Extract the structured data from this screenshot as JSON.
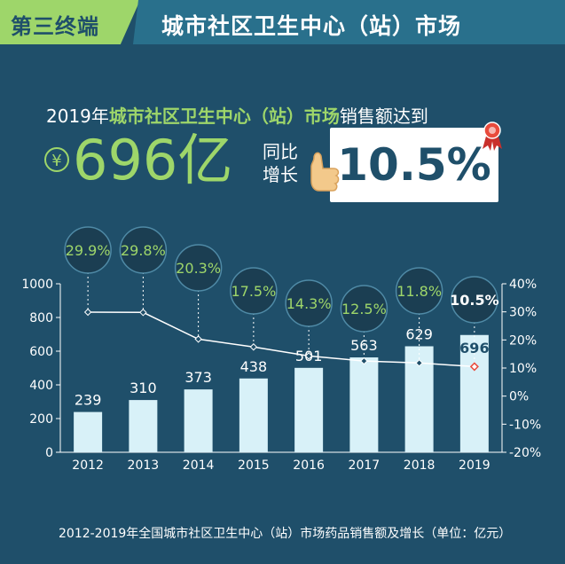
{
  "banner": {
    "tag": "第三终端",
    "title": "城市社区卫生中心（站）市场"
  },
  "headline": {
    "year": "2019年",
    "market": "城市社区卫生中心（站）市场",
    "suffix": "销售额达到"
  },
  "amount": {
    "currency": "¥",
    "value": "696亿"
  },
  "yoy": {
    "line1": "同比",
    "line2": "增长",
    "value": "10.5%"
  },
  "caption": "2012-2019年全国城市社区卫生中心（站）市场药品销售额及增长（单位：亿元）",
  "colors": {
    "background": "#1f4f6a",
    "accent": "#9ed66a",
    "banner_title": "#29708c",
    "bar": "#d8f1f8",
    "growth_line": "#ffffff",
    "bubble": "#1b3e52"
  },
  "chart_data": {
    "type": "bar",
    "categories": [
      "2012",
      "2013",
      "2014",
      "2015",
      "2016",
      "2017",
      "2018",
      "2019"
    ],
    "series": [
      {
        "values": [
          239,
          310,
          373,
          438,
          501,
          563,
          629,
          696
        ]
      },
      {
        "type": "line",
        "axis": "right",
        "values": [
          29.9,
          29.8,
          20.3,
          17.5,
          14.3,
          12.5,
          11.8,
          10.5
        ]
      }
    ],
    "value_labels": [
      "239",
      "310",
      "373",
      "438",
      "501",
      "563",
      "629",
      "696"
    ],
    "growth_labels": [
      "29.9%",
      "29.8%",
      "20.3%",
      "17.5%",
      "14.3%",
      "12.5%",
      "11.8%",
      "10.5%"
    ],
    "y_left": {
      "ylim": [
        0,
        1000
      ],
      "ticks": [
        0,
        200,
        400,
        600,
        800,
        1000
      ],
      "tick_labels": [
        "0",
        "200",
        "400",
        "600",
        "800",
        "1000"
      ]
    },
    "y_right": {
      "ylim": [
        -20,
        40
      ],
      "ticks": [
        -20,
        -10,
        0,
        10,
        20,
        30,
        40
      ],
      "tick_labels": [
        "-20%",
        "-10%",
        "0%",
        "10%",
        "20%",
        "30%",
        "40%"
      ]
    },
    "grid": false,
    "title": "",
    "xlabel": "",
    "ylabel": ""
  }
}
